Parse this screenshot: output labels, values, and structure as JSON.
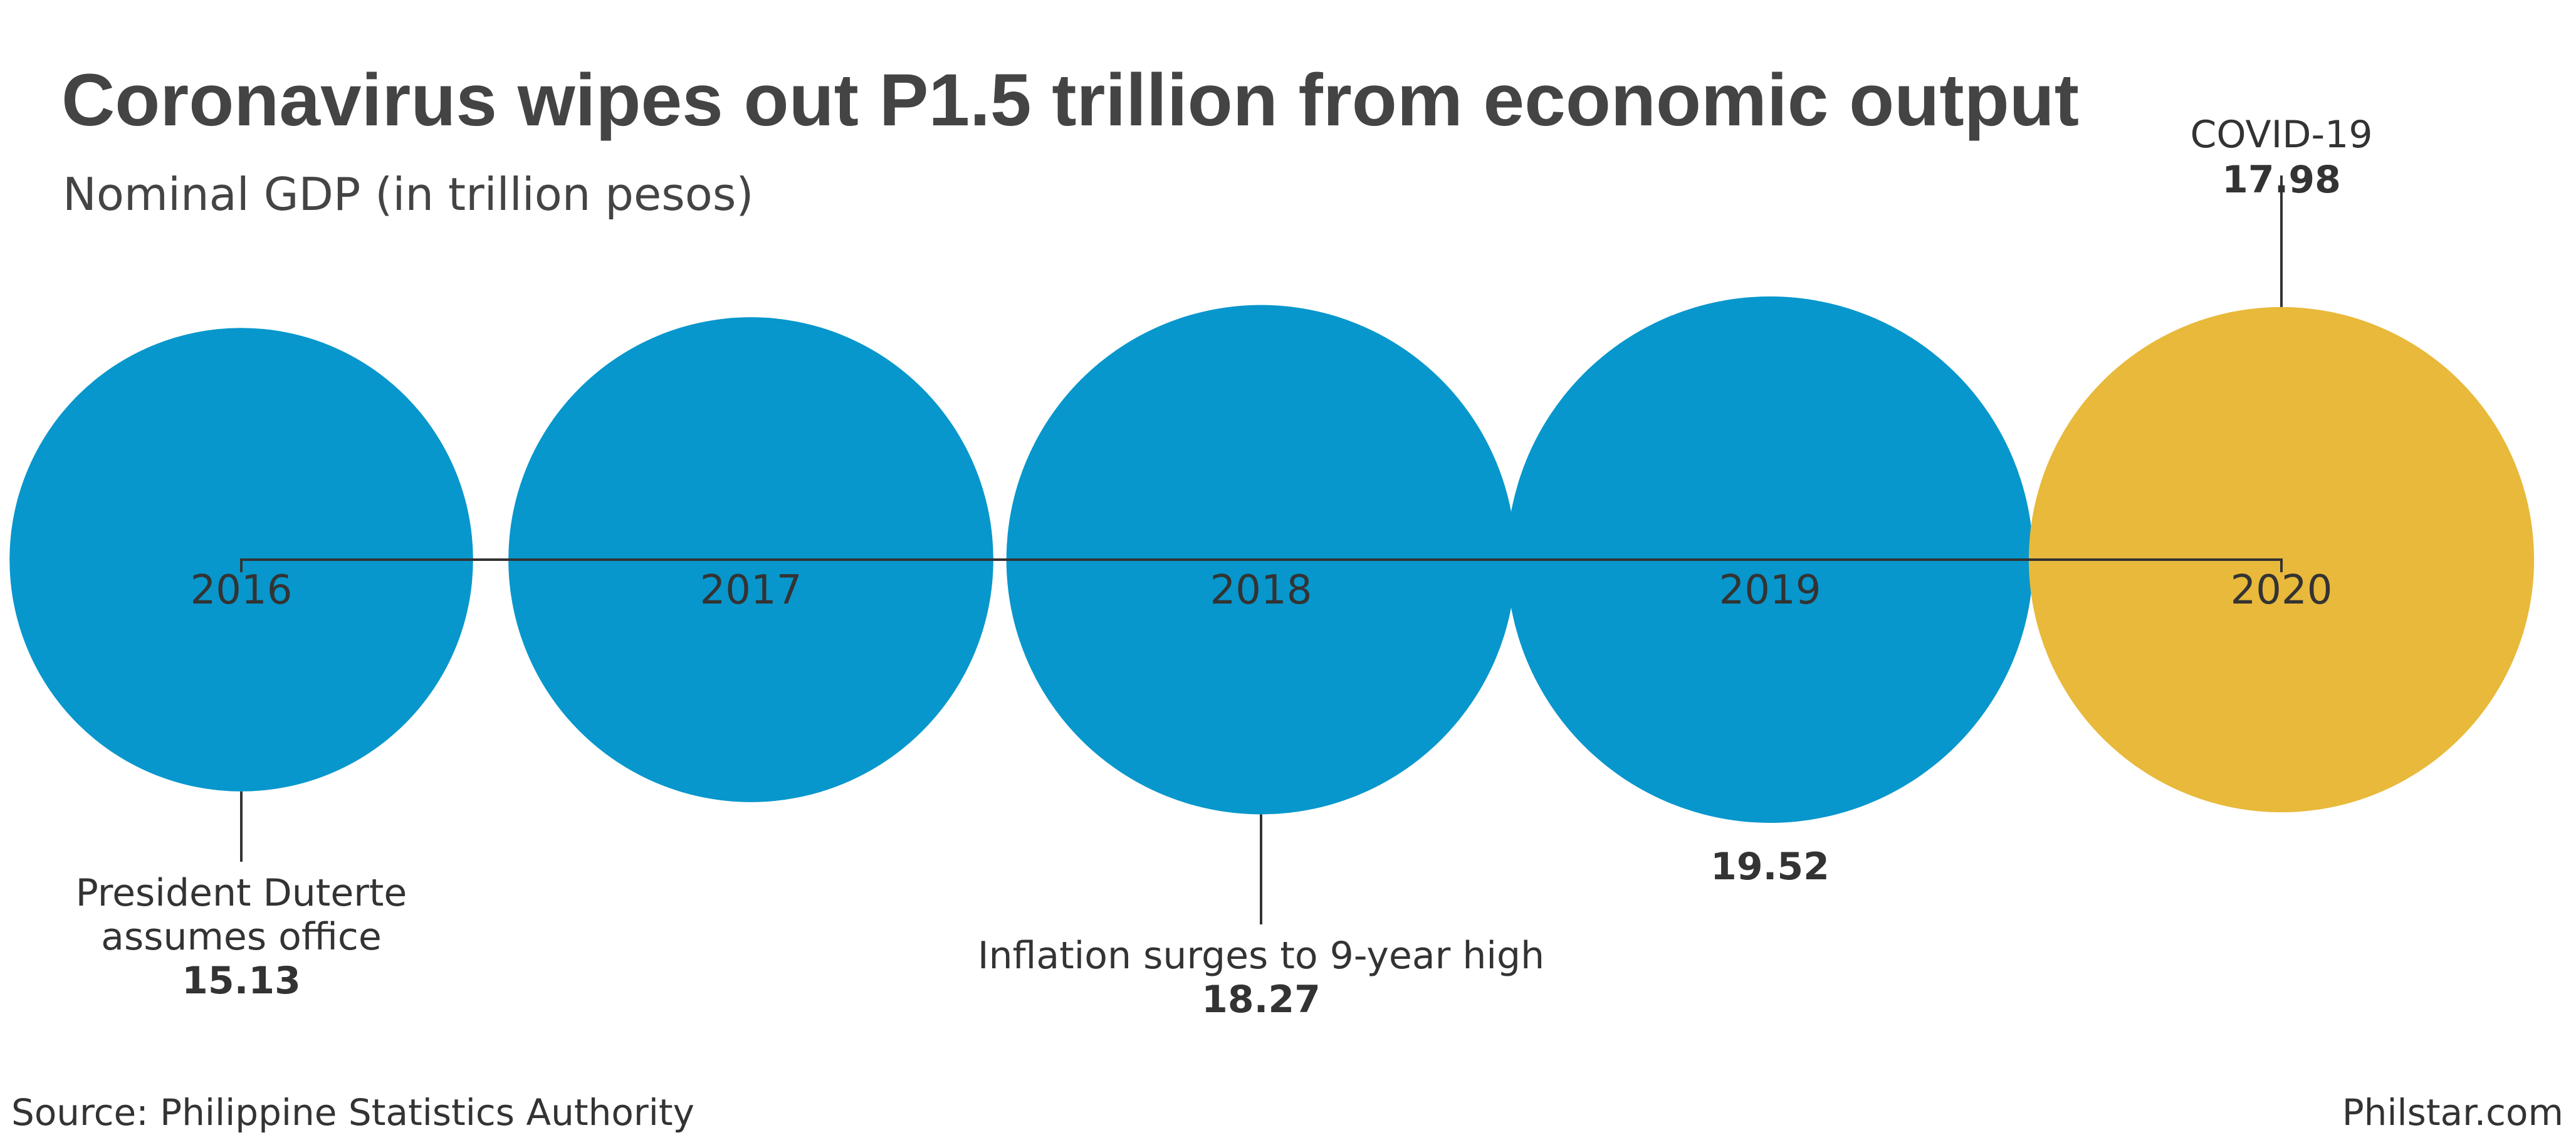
{
  "header": {
    "title": "Coronavirus wipes out P1.5 trillion from economic output",
    "subtitle": "Nominal GDP (in trillion pesos)"
  },
  "footer": {
    "source": "Source: Philippine Statistics Authority",
    "brand": "Philstar.com"
  },
  "colors": {
    "default": "#0797cc",
    "highlight": "#e8b93a"
  },
  "chart_data": {
    "type": "bubble",
    "title": "Coronavirus wipes out P1.5 trillion from economic output",
    "subtitle": "Nominal GDP (in trillion pesos)",
    "unit": "trillion pesos",
    "categories": [
      "2016",
      "2017",
      "2018",
      "2019",
      "2020"
    ],
    "values": [
      15.13,
      16.56,
      18.27,
      19.52,
      17.98
    ],
    "values_labeled": [
      true,
      false,
      true,
      true,
      true
    ],
    "annotations": [
      "President Duterte assumes office",
      "",
      "Inflation surges to 9-year high",
      "",
      "COVID-19"
    ],
    "highlight_category": "2020"
  }
}
